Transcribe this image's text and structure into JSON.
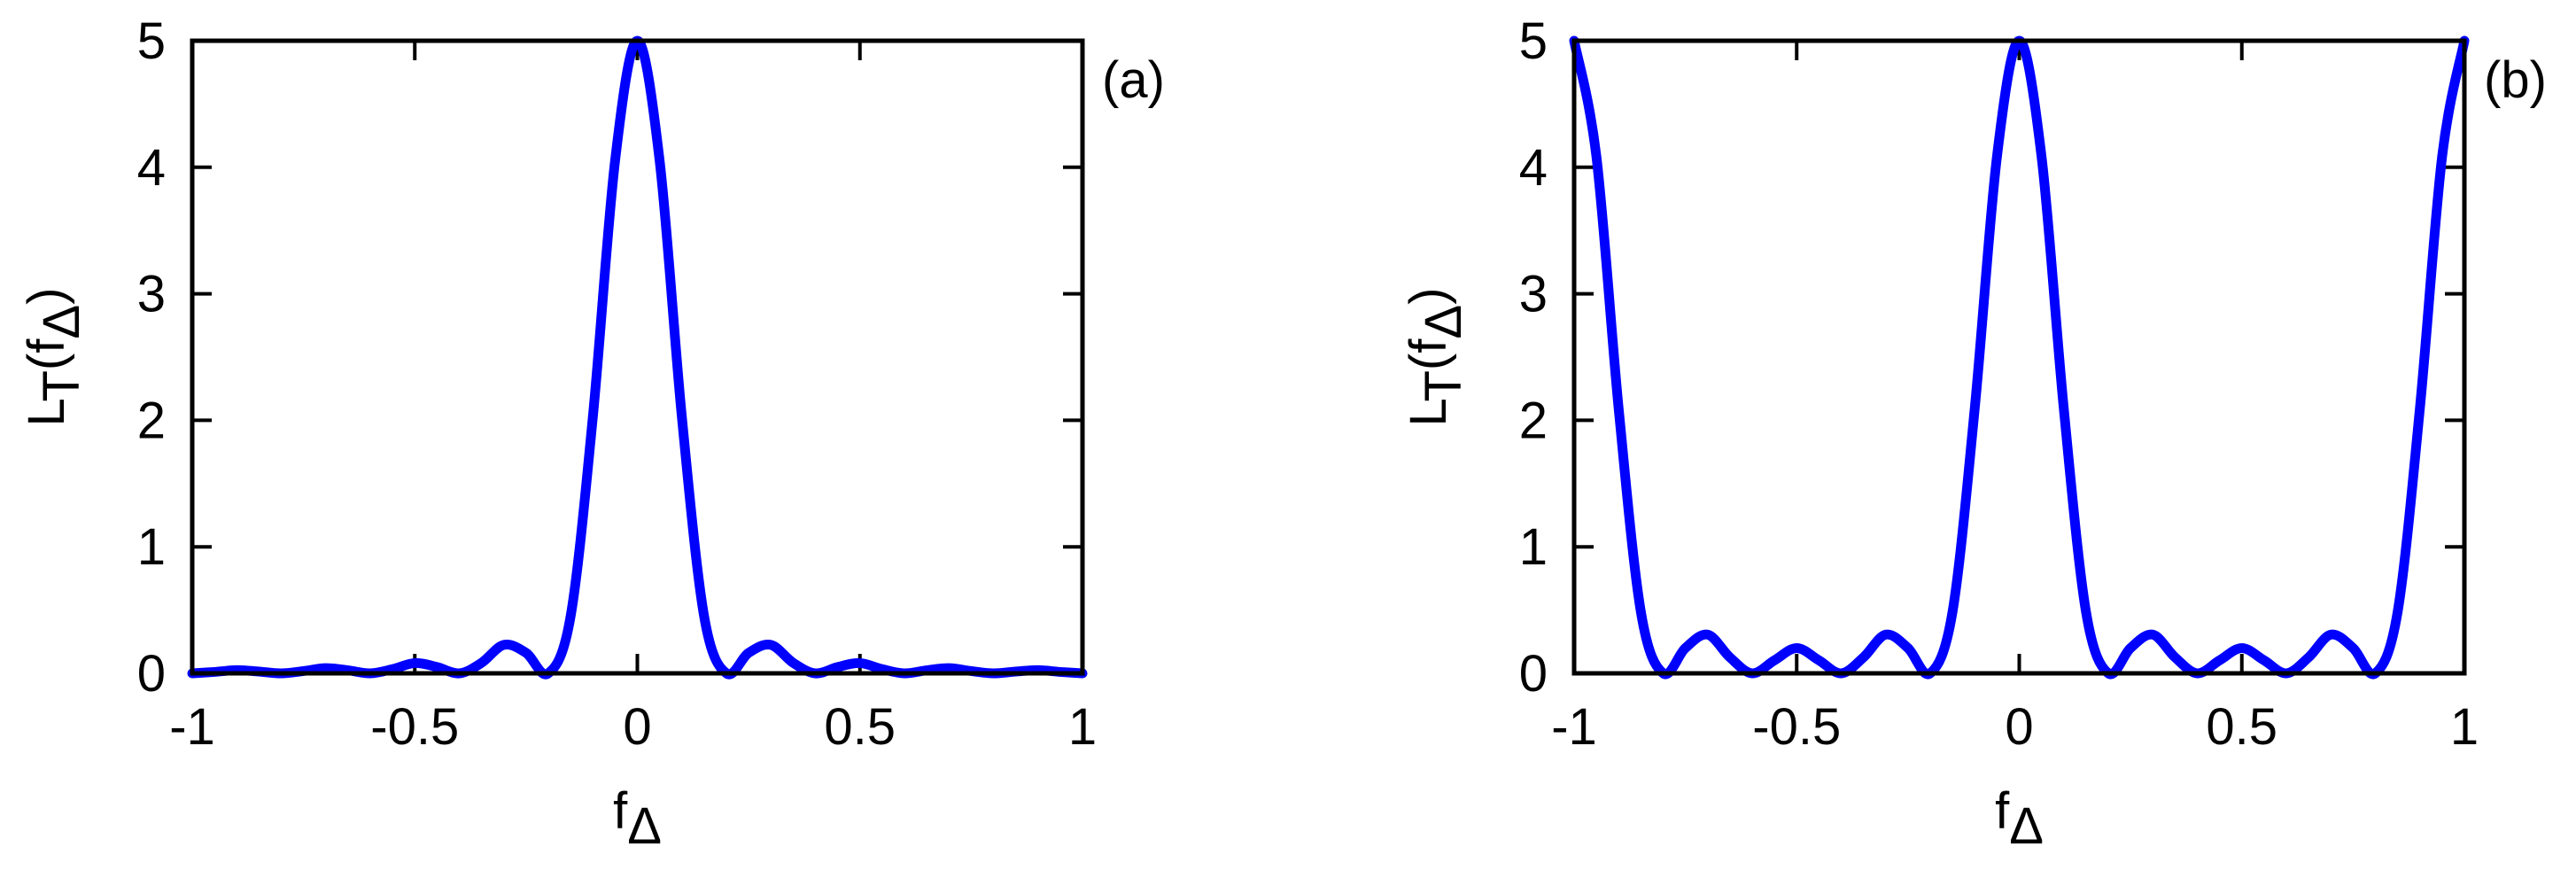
{
  "chart_data": [
    {
      "type": "line",
      "annotation": "(a)",
      "xlabel": [
        {
          "text": "f"
        },
        {
          "text": "Δ",
          "sub": true
        }
      ],
      "ylabel": [
        {
          "text": "L"
        },
        {
          "text": "T",
          "sub": true
        },
        {
          "text": "(f"
        },
        {
          "text": "Δ",
          "sub": true
        },
        {
          "text": ")"
        }
      ],
      "x": [
        -1,
        -0.95,
        -0.9,
        -0.85,
        -0.8,
        -0.75,
        -0.7,
        -0.65,
        -0.6,
        -0.55,
        -0.5,
        -0.45,
        -0.4,
        -0.35,
        -0.3,
        -0.25,
        -0.2,
        -0.15,
        -0.1,
        -0.05,
        0,
        0.05,
        0.1,
        0.15,
        0.2,
        0.25,
        0.3,
        0.35,
        0.4,
        0.45,
        0.5,
        0.55,
        0.6,
        0.65,
        0.7,
        0.75,
        0.8,
        0.85,
        0.9,
        0.95,
        1
      ],
      "series": [
        {
          "color": "#0000ff",
          "values": [
            0,
            0.011,
            0.025,
            0.014,
            0,
            0.018,
            0.041,
            0.024,
            0,
            0.033,
            0.081,
            0.05,
            0,
            0.083,
            0.225,
            0.162,
            0,
            0.45,
            2.026,
            4.053,
            5,
            4.053,
            2.026,
            0.45,
            0,
            0.162,
            0.225,
            0.083,
            0,
            0.05,
            0.081,
            0.033,
            0,
            0.024,
            0.041,
            0.018,
            0,
            0.014,
            0.025,
            0.011,
            0
          ]
        }
      ],
      "xlim": [
        -1,
        1
      ],
      "ylim": [
        0,
        5
      ],
      "xticks": [
        -1,
        -0.5,
        0,
        0.5,
        1
      ],
      "yticks": [
        0,
        1,
        2,
        3,
        4,
        5
      ]
    },
    {
      "type": "line",
      "annotation": "(b)",
      "xlabel": [
        {
          "text": "f"
        },
        {
          "text": "Δ",
          "sub": true
        }
      ],
      "ylabel": [
        {
          "text": "L"
        },
        {
          "text": "T",
          "sub": true
        },
        {
          "text": "(f"
        },
        {
          "text": "Δ",
          "sub": true
        },
        {
          "text": ")"
        }
      ],
      "x": [
        -1,
        -0.95,
        -0.9,
        -0.85,
        -0.8,
        -0.75,
        -0.7,
        -0.65,
        -0.6,
        -0.55,
        -0.5,
        -0.45,
        -0.4,
        -0.35,
        -0.3,
        -0.25,
        -0.2,
        -0.15,
        -0.1,
        -0.05,
        0,
        0.05,
        0.1,
        0.15,
        0.2,
        0.25,
        0.3,
        0.35,
        0.4,
        0.45,
        0.5,
        0.55,
        0.6,
        0.65,
        0.7,
        0.75,
        0.8,
        0.85,
        0.9,
        0.95,
        1
      ],
      "series": [
        {
          "color": "#0000ff",
          "values": [
            5,
            4.086,
            2.094,
            0.485,
            0,
            0.2,
            0.306,
            0.126,
            0,
            0.103,
            0.2,
            0.103,
            0,
            0.126,
            0.306,
            0.2,
            0,
            0.485,
            2.094,
            4.086,
            5,
            4.086,
            2.094,
            0.485,
            0,
            0.2,
            0.306,
            0.126,
            0,
            0.103,
            0.2,
            0.103,
            0,
            0.126,
            0.306,
            0.2,
            0,
            0.485,
            2.094,
            4.086,
            5
          ]
        }
      ],
      "xlim": [
        -1,
        1
      ],
      "ylim": [
        0,
        5
      ],
      "xticks": [
        -1,
        -0.5,
        0,
        0.5,
        1
      ],
      "yticks": [
        0,
        1,
        2,
        3,
        4,
        5
      ]
    }
  ]
}
